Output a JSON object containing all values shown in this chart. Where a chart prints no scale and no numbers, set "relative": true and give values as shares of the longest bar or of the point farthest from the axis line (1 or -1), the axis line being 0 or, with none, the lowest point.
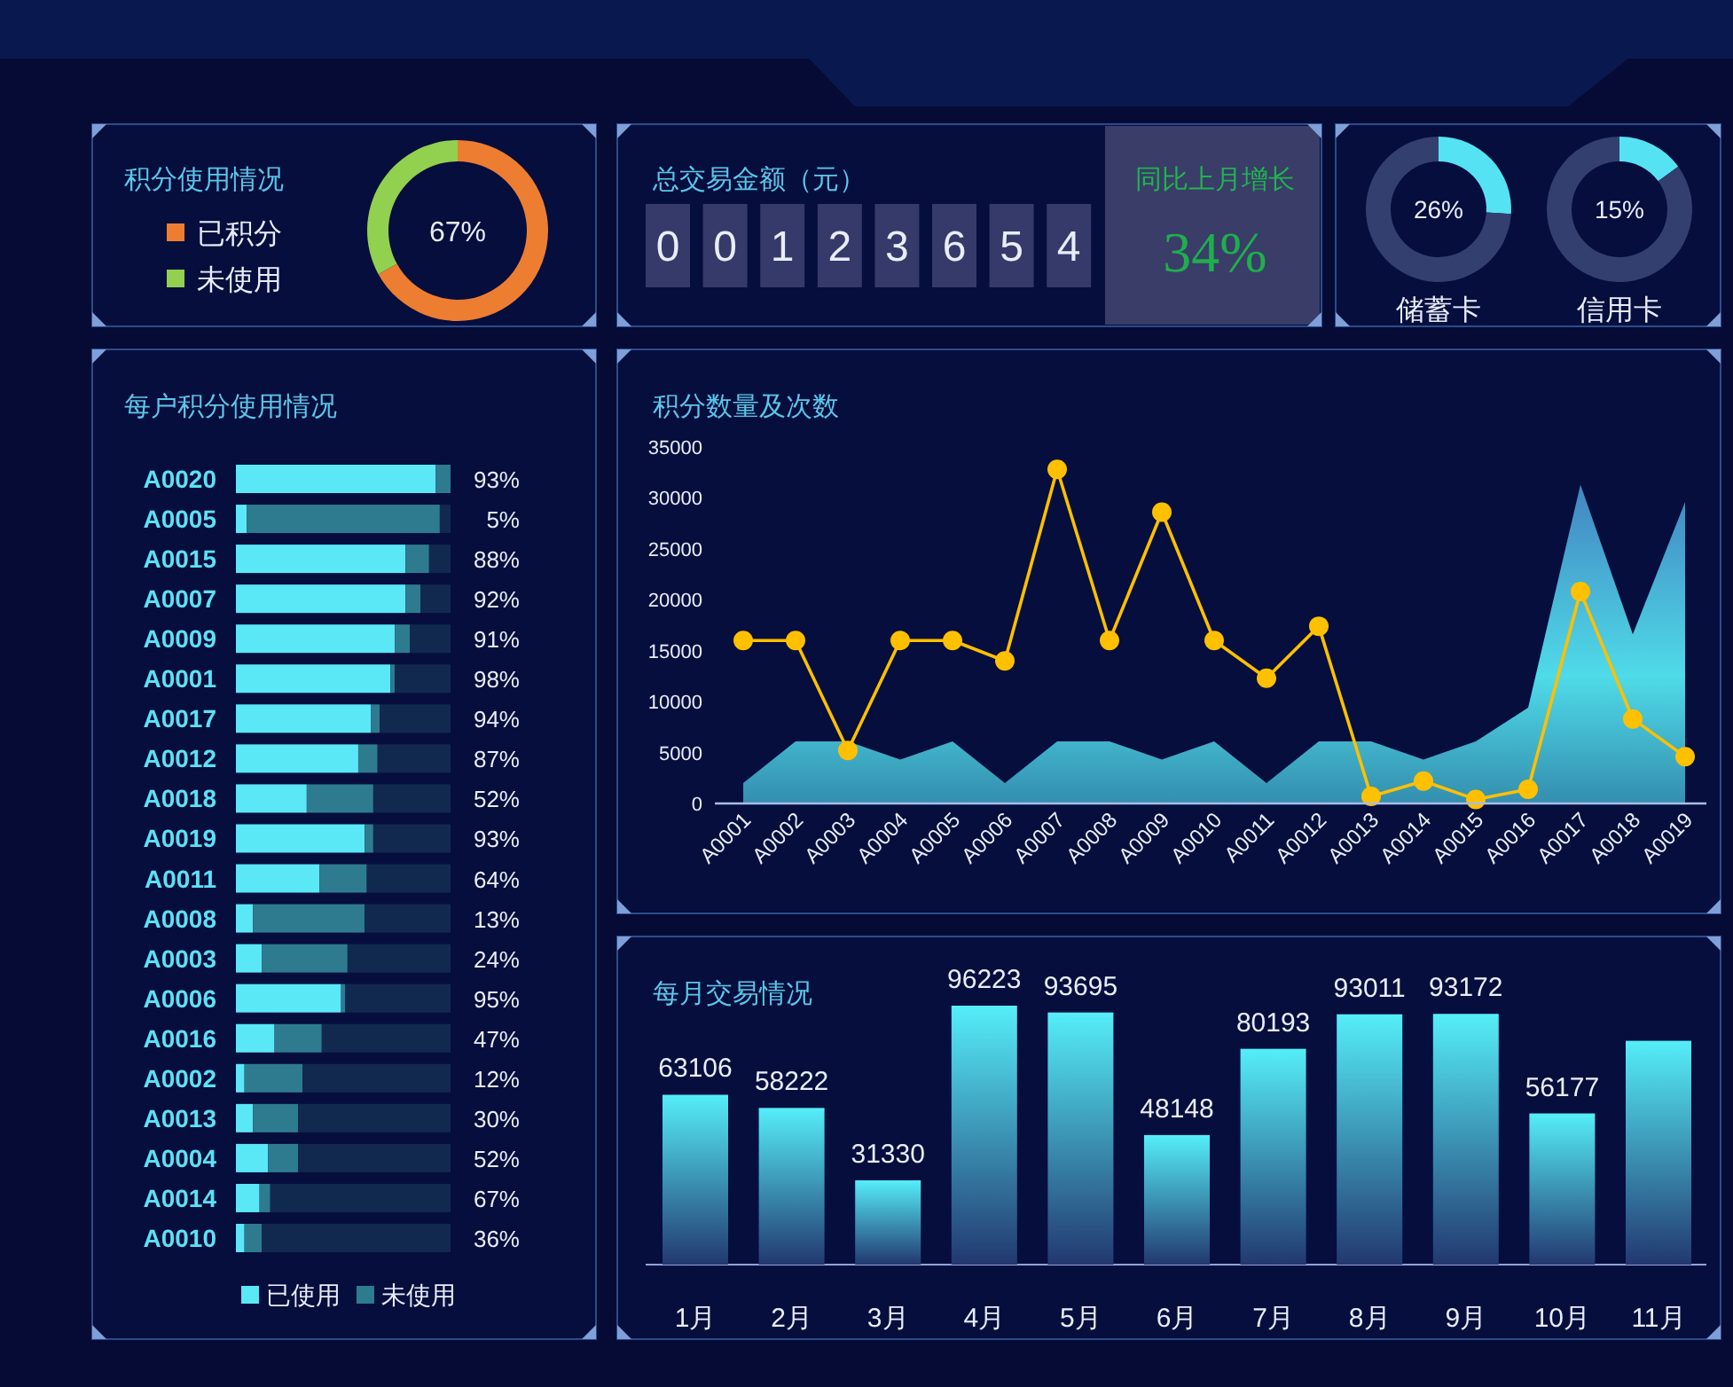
{
  "chart_data": [
    {
      "type": "donut",
      "title": "积分使用情况",
      "categories": [
        "已积分",
        "未使用"
      ],
      "values": [
        67,
        33
      ],
      "colors": [
        "#ed7d31",
        "#92d050"
      ],
      "legend": "left",
      "annotations": [
        "67%"
      ]
    },
    {
      "type": "other",
      "title": "总交易金额（元）",
      "annotations": [
        "0",
        "0",
        "1",
        "2",
        "3",
        "6",
        "5",
        "4"
      ]
    },
    {
      "type": "other",
      "title": "同比上月增长",
      "annotations": [
        "34%"
      ]
    },
    {
      "type": "donut",
      "title": "储蓄卡",
      "categories": [
        null,
        null
      ],
      "values": [
        26,
        74
      ],
      "colors": [
        "#55e3f3",
        "#333f6e"
      ],
      "annotations": [
        "26%"
      ]
    },
    {
      "type": "donut",
      "title": "信用卡",
      "categories": [
        null,
        null
      ],
      "values": [
        15,
        85
      ],
      "colors": [
        "#55e3f3",
        "#333f6e"
      ],
      "annotations": [
        "15%"
      ]
    },
    {
      "type": "bar",
      "title": "每户积分使用情况",
      "orientation": "horizontal",
      "stacked": true,
      "relative": true,
      "legend": "bottom",
      "categories": [
        "A0020",
        "A0005",
        "A0015",
        "A0007",
        "A0009",
        "A0001",
        "A0017",
        "A0012",
        "A0018",
        "A0019",
        "A0011",
        "A0008",
        "A0003",
        "A0006",
        "A0016",
        "A0002",
        "A0013",
        "A0004",
        "A0014",
        "A0010"
      ],
      "series": [
        {
          "name": "已使用",
          "color": "#5ae8f6",
          "values": [
            0.93,
            0.05,
            0.79,
            0.79,
            0.74,
            0.72,
            0.63,
            0.57,
            0.33,
            0.6,
            0.39,
            0.08,
            0.12,
            0.49,
            0.18,
            0.04,
            0.08,
            0.15,
            0.11,
            0.04
          ]
        },
        {
          "name": "未使用",
          "color": "#2e7b90",
          "values": [
            0.07,
            0.9,
            0.11,
            0.07,
            0.07,
            0.02,
            0.04,
            0.09,
            0.31,
            0.04,
            0.22,
            0.52,
            0.4,
            0.02,
            0.22,
            0.27,
            0.21,
            0.14,
            0.05,
            0.08
          ]
        },
        {
          "color": "#12294f",
          "values": [
            0,
            0.05,
            0.1,
            0.14,
            0.19,
            0.26,
            0.33,
            0.34,
            0.36,
            0.36,
            0.39,
            0.4,
            0.48,
            0.49,
            0.6,
            0.69,
            0.71,
            0.71,
            0.84,
            0.88
          ]
        }
      ],
      "annotations": [
        "93%",
        "5%",
        "88%",
        "92%",
        "91%",
        "98%",
        "94%",
        "87%",
        "52%",
        "93%",
        "64%",
        "13%",
        "24%",
        "95%",
        "47%",
        "12%",
        "30%",
        "52%",
        "67%",
        "36%"
      ]
    },
    {
      "type": "line",
      "title": "积分数量及次数",
      "categories": [
        "A0001",
        "A0002",
        "A0003",
        "A0004",
        "A0005",
        "A0006",
        "A0007",
        "A0008",
        "A0009",
        "A0010",
        "A0011",
        "A0012",
        "A0013",
        "A0014",
        "A0015",
        "A0016",
        "A0017",
        "A0018",
        "A0019"
      ],
      "ylim": [
        0,
        35000
      ],
      "yticks": [
        0,
        5000,
        10000,
        15000,
        20000,
        25000,
        30000,
        35000
      ],
      "series": [
        {
          "type": "area",
          "color": "#4fdbe8",
          "values": [
            2000,
            6100,
            6100,
            4300,
            6100,
            2000,
            6100,
            6100,
            4300,
            6100,
            2000,
            6100,
            6100,
            4300,
            6100,
            9400,
            31300,
            16600,
            29600
          ]
        },
        {
          "type": "line",
          "color": "#ffc000",
          "marker": "circle",
          "values": [
            16000,
            16000,
            5200,
            16000,
            16000,
            14000,
            32800,
            16000,
            28600,
            16000,
            12300,
            17400,
            700,
            2200,
            400,
            1400,
            20800,
            8300,
            4600
          ]
        }
      ]
    },
    {
      "type": "bar",
      "title": "每月交易情况",
      "categories": [
        "1月",
        "2月",
        "3月",
        "4月",
        "5月",
        "6月",
        "7月",
        "8月",
        "9月",
        "10月",
        "11月"
      ],
      "values": [
        63106,
        58222,
        31330,
        96223,
        93695,
        48148,
        80193,
        93011,
        93172,
        56177,
        83170
      ],
      "color": "#55eef8",
      "value_labels": [
        "63106",
        "58222",
        "31330",
        "96223",
        "93695",
        "48148",
        "80193",
        "93011",
        "93172",
        "56177",
        null
      ]
    }
  ]
}
